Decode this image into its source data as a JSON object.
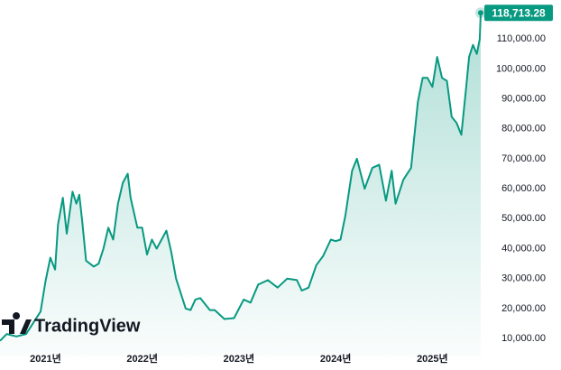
{
  "chart_data": {
    "type": "line",
    "brand": "TradingView",
    "color": "#089981",
    "x": [
      2020.53,
      2020.6,
      2020.7,
      2020.8,
      2020.88,
      2020.95,
      2021.0,
      2021.05,
      2021.1,
      2021.13,
      2021.18,
      2021.22,
      2021.28,
      2021.32,
      2021.35,
      2021.38,
      2021.42,
      2021.5,
      2021.55,
      2021.6,
      2021.65,
      2021.7,
      2021.75,
      2021.8,
      2021.85,
      2021.88,
      2021.95,
      2022.0,
      2022.05,
      2022.1,
      2022.15,
      2022.25,
      2022.3,
      2022.35,
      2022.45,
      2022.5,
      2022.55,
      2022.6,
      2022.7,
      2022.75,
      2022.85,
      2022.95,
      2023.05,
      2023.12,
      2023.2,
      2023.3,
      2023.4,
      2023.5,
      2023.6,
      2023.65,
      2023.72,
      2023.8,
      2023.87,
      2023.95,
      2024.0,
      2024.05,
      2024.1,
      2024.17,
      2024.22,
      2024.3,
      2024.38,
      2024.45,
      2024.52,
      2024.58,
      2024.62,
      2024.7,
      2024.78,
      2024.85,
      2024.9,
      2024.95,
      2025.0,
      2025.05,
      2025.1,
      2025.15,
      2025.2,
      2025.25,
      2025.3,
      2025.35,
      2025.38,
      2025.42,
      2025.46,
      2025.49,
      2025.5
    ],
    "values": [
      9200,
      11500,
      10700,
      11500,
      15500,
      19000,
      29000,
      37000,
      33000,
      48000,
      57000,
      45000,
      59000,
      55000,
      58000,
      49000,
      36000,
      34000,
      35000,
      40000,
      47000,
      43000,
      55000,
      62000,
      65000,
      57000,
      47000,
      47000,
      38000,
      43000,
      40000,
      46000,
      39000,
      30000,
      20000,
      19500,
      23000,
      23500,
      19500,
      19500,
      16500,
      16800,
      23000,
      22000,
      28000,
      29500,
      27000,
      30000,
      29500,
      26000,
      27000,
      34500,
      37500,
      43000,
      42500,
      43000,
      51000,
      66000,
      70000,
      60000,
      67000,
      68000,
      56000,
      66000,
      55000,
      63000,
      67000,
      89000,
      97000,
      97000,
      94000,
      104000,
      97000,
      96000,
      84000,
      82000,
      78000,
      94000,
      104000,
      108000,
      105000,
      110000,
      118713.28
    ],
    "value_labels": [
      null,
      null,
      null,
      null,
      null,
      null,
      null,
      null,
      null,
      null,
      null,
      null,
      null,
      null,
      null,
      null,
      null,
      null,
      null,
      null,
      null,
      null,
      null,
      null,
      null,
      null,
      null,
      null,
      null,
      null,
      null,
      null,
      null,
      null,
      null,
      null,
      null,
      null,
      null,
      null,
      null,
      null,
      null,
      null,
      null,
      null,
      null,
      null,
      null,
      null,
      null,
      null,
      null,
      null,
      null,
      null,
      null,
      null,
      null,
      null,
      null,
      null,
      null,
      null,
      null,
      null,
      null,
      null,
      null,
      null,
      null,
      null,
      null,
      null,
      null,
      null,
      null,
      null,
      null,
      null,
      null,
      null,
      "118,713.28"
    ],
    "xlim": [
      2020.53,
      2026.33
    ],
    "xticks": [
      {
        "value": 2021,
        "label": "2021년"
      },
      {
        "value": 2022,
        "label": "2022년"
      },
      {
        "value": 2023,
        "label": "2023년"
      },
      {
        "value": 2024,
        "label": "2024년"
      },
      {
        "value": 2025,
        "label": "2025년"
      }
    ],
    "ylim": [
      4000,
      123000
    ],
    "yticks": [
      {
        "value": 10000,
        "label": "10,000.00"
      },
      {
        "value": 20000,
        "label": "20,000.00"
      },
      {
        "value": 30000,
        "label": "30,000.00"
      },
      {
        "value": 40000,
        "label": "40,000.00"
      },
      {
        "value": 50000,
        "label": "50,000.00"
      },
      {
        "value": 60000,
        "label": "60,000.00"
      },
      {
        "value": 70000,
        "label": "70,000.00"
      },
      {
        "value": 80000,
        "label": "80,000.00"
      },
      {
        "value": 90000,
        "label": "90,000.00"
      },
      {
        "value": 100000,
        "label": "100,000.00"
      },
      {
        "value": 110000,
        "label": "110,000.00"
      }
    ],
    "grid": false
  }
}
